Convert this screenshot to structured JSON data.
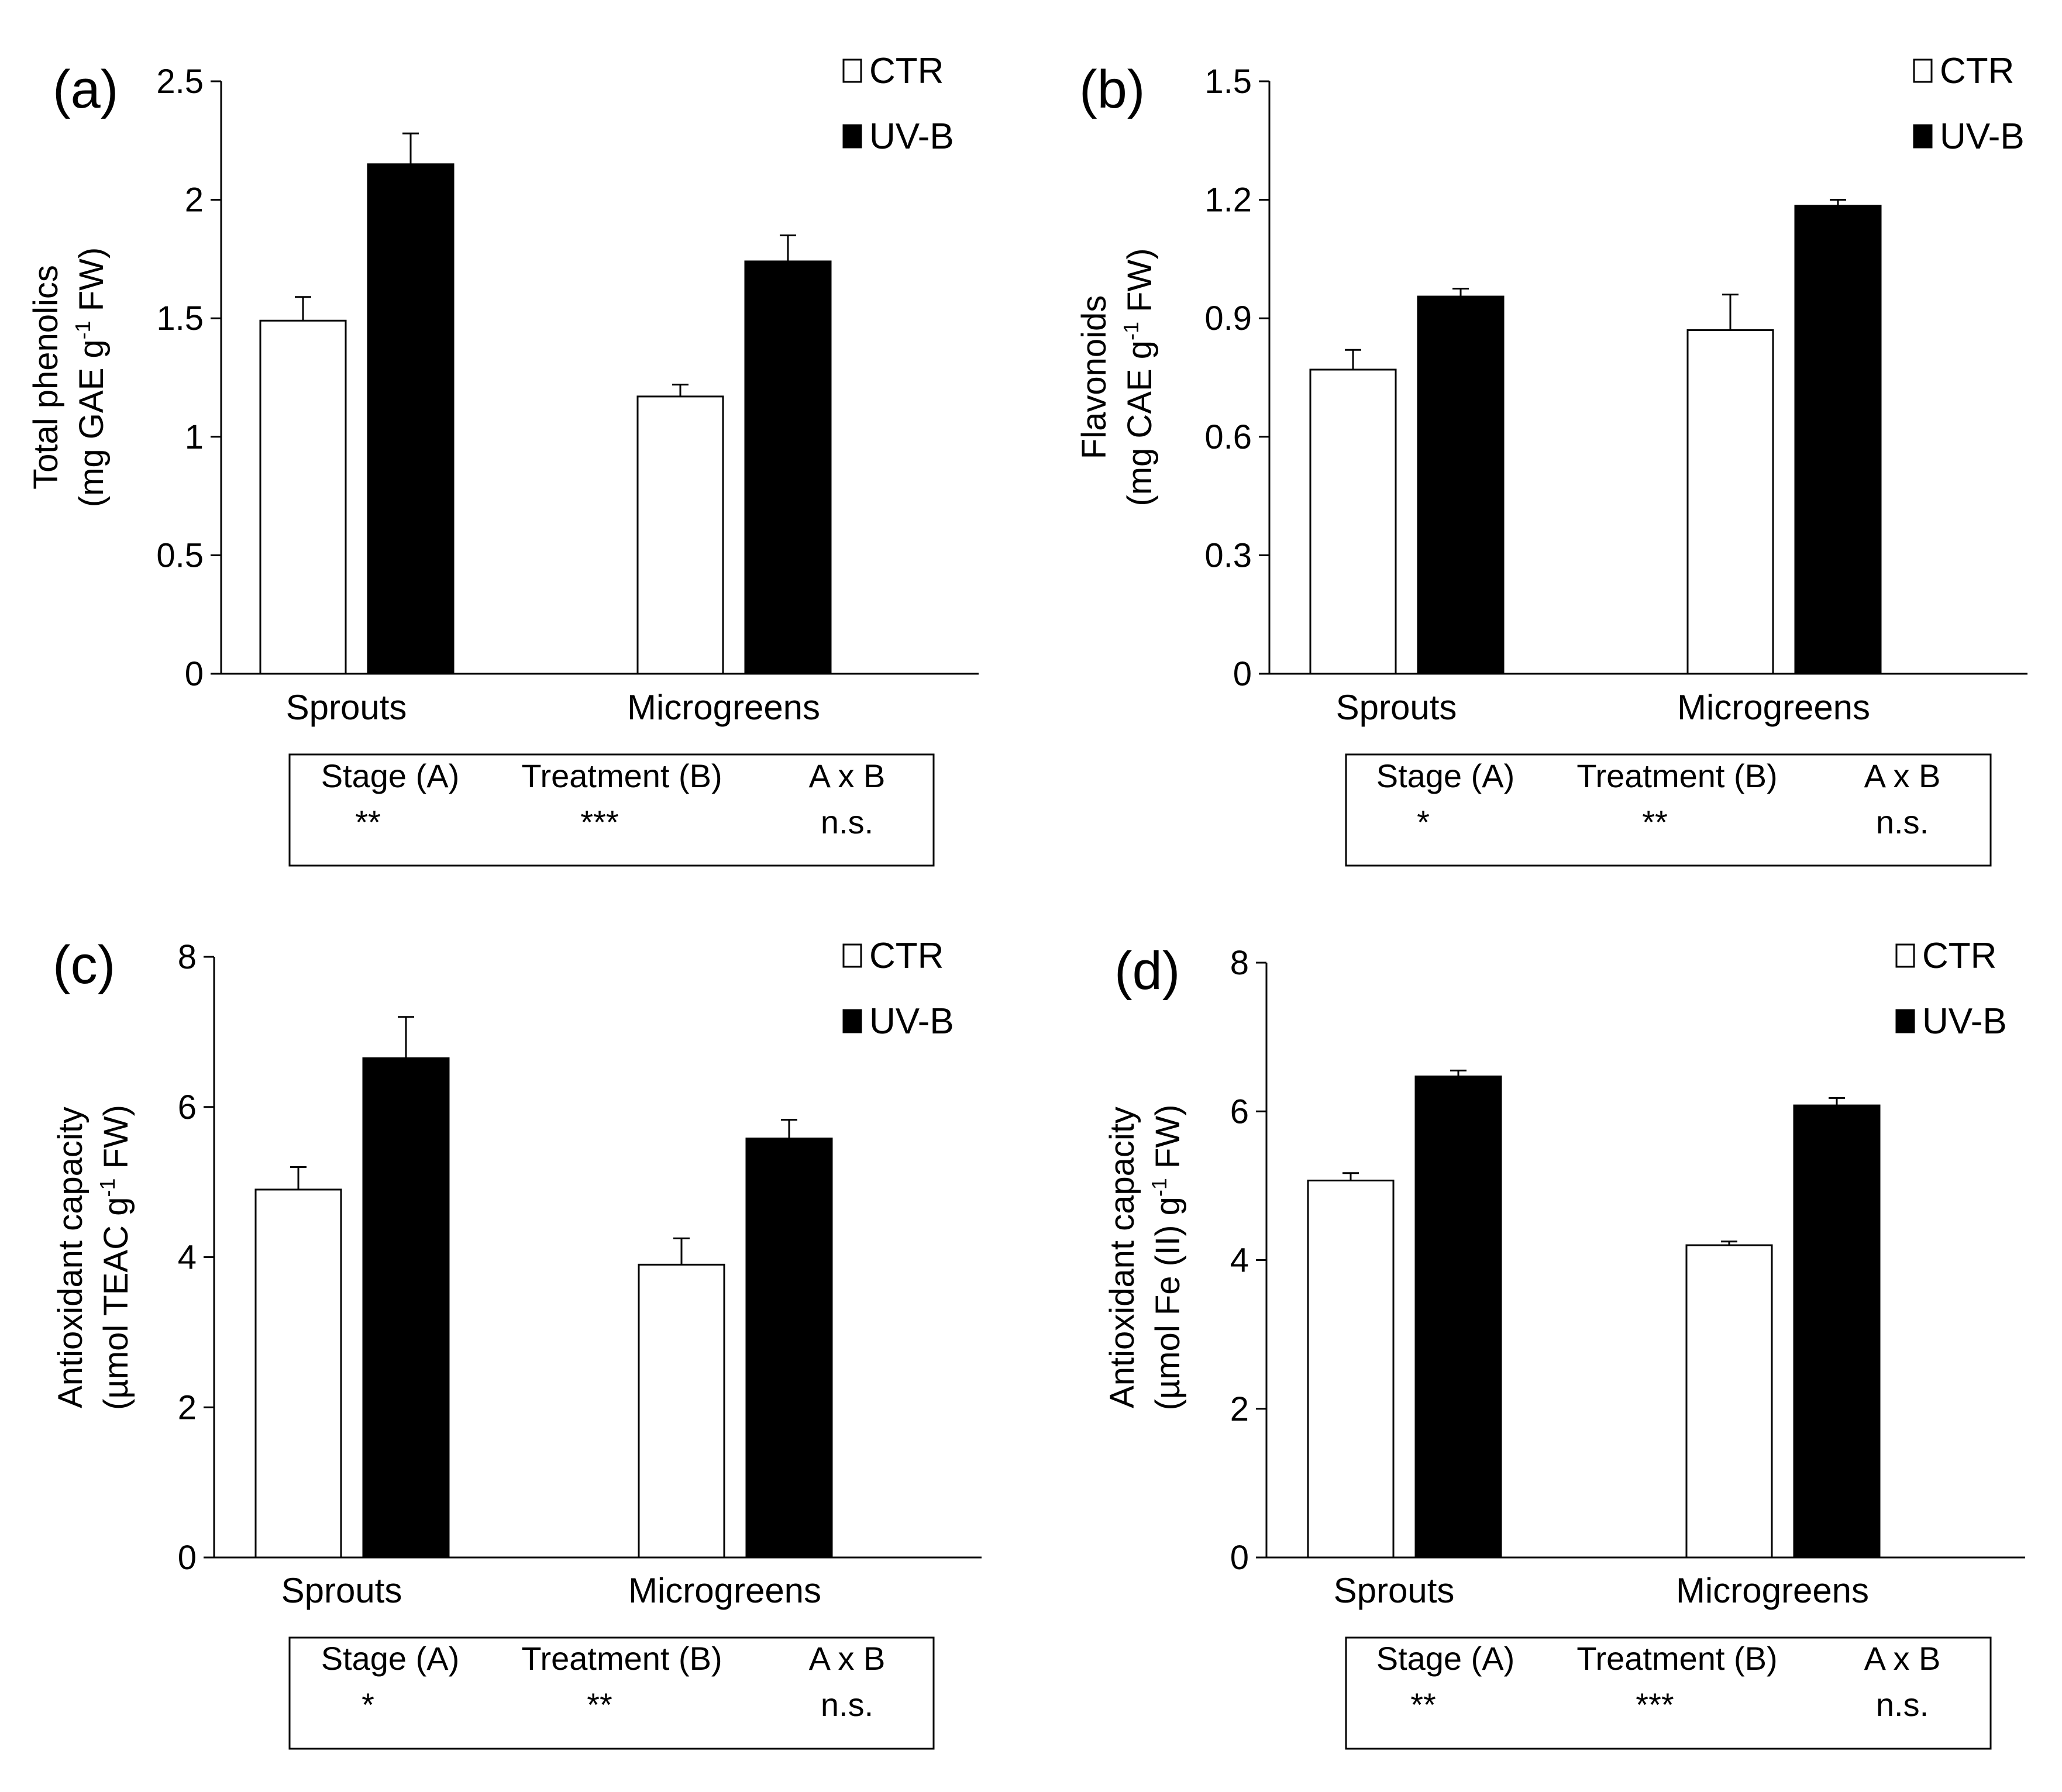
{
  "chart_data": [
    {
      "type": "bar",
      "panel_label": "(a)",
      "title": "",
      "xlabel": "",
      "ylabel_line1": "Total phenolics",
      "ylabel_line2_pre": "(mg GAE g",
      "ylabel_sup": "-1",
      "ylabel_line2_post": " FW)",
      "ylim": [
        0,
        2.5
      ],
      "yticks": [
        0,
        0.5,
        1,
        1.5,
        2,
        2.5
      ],
      "ytick_labels": [
        "0",
        "0.5",
        "1",
        "1.5",
        "2",
        "2.5"
      ],
      "categories": [
        "Sprouts",
        "Microgreens"
      ],
      "series": [
        {
          "name": "CTR",
          "fill": "#ffffff",
          "values": [
            1.49,
            1.17
          ],
          "errors": [
            0.1,
            0.05
          ]
        },
        {
          "name": "UV-B",
          "fill": "#000000",
          "values": [
            2.15,
            1.74
          ],
          "errors": [
            0.13,
            0.11
          ]
        }
      ],
      "legend_position": "top-right",
      "stats": {
        "headers": [
          "Stage (A)",
          "Treatment (B)",
          "A x B"
        ],
        "values": [
          "**",
          "***",
          "n.s."
        ]
      }
    },
    {
      "type": "bar",
      "panel_label": "(b)",
      "title": "",
      "xlabel": "",
      "ylabel_line1": "Flavonoids",
      "ylabel_line2_pre": "(mg CAE g",
      "ylabel_sup": "-1",
      "ylabel_line2_post": " FW)",
      "ylim": [
        0,
        1.5
      ],
      "yticks": [
        0,
        0.3,
        0.6,
        0.9,
        1.2,
        1.5
      ],
      "ytick_labels": [
        "0",
        "0.3",
        "0.6",
        "0.9",
        "1.2",
        "1.5"
      ],
      "categories": [
        "Sprouts",
        "Microgreens"
      ],
      "series": [
        {
          "name": "CTR",
          "fill": "#ffffff",
          "values": [
            0.77,
            0.87
          ],
          "errors": [
            0.05,
            0.09
          ]
        },
        {
          "name": "UV-B",
          "fill": "#000000",
          "values": [
            0.955,
            1.185
          ],
          "errors": [
            0.02,
            0.015
          ]
        }
      ],
      "legend_position": "top-right",
      "stats": {
        "headers": [
          "Stage (A)",
          "Treatment (B)",
          "A x B"
        ],
        "values": [
          "*",
          "**",
          "n.s."
        ]
      }
    },
    {
      "type": "bar",
      "panel_label": "(c)",
      "title": "",
      "xlabel": "",
      "ylabel_line1": "Antioxidant capacity",
      "ylabel_line2_pre": "(µmol TEAC g",
      "ylabel_sup": "-1",
      "ylabel_line2_post": " FW)",
      "ylim": [
        0,
        8
      ],
      "yticks": [
        0,
        2,
        4,
        6,
        8
      ],
      "ytick_labels": [
        "0",
        "2",
        "4",
        "6",
        "8"
      ],
      "categories": [
        "Sprouts",
        "Microgreens"
      ],
      "series": [
        {
          "name": "CTR",
          "fill": "#ffffff",
          "values": [
            4.9,
            3.9
          ],
          "errors": [
            0.3,
            0.35
          ]
        },
        {
          "name": "UV-B",
          "fill": "#000000",
          "values": [
            6.65,
            5.58
          ],
          "errors": [
            0.55,
            0.25
          ]
        }
      ],
      "legend_position": "top-right",
      "stats": {
        "headers": [
          "Stage (A)",
          "Treatment (B)",
          "A x B"
        ],
        "values": [
          "*",
          "**",
          "n.s."
        ]
      }
    },
    {
      "type": "bar",
      "panel_label": "(d)",
      "title": "",
      "xlabel": "",
      "ylabel_line1": "Antioxidant capacity",
      "ylabel_line2_pre": "(µmol Fe (II) g",
      "ylabel_sup": "-1",
      "ylabel_line2_post": " FW)",
      "ylim": [
        0,
        8
      ],
      "yticks": [
        0,
        2,
        4,
        6,
        8
      ],
      "ytick_labels": [
        "0",
        "2",
        "4",
        "6",
        "8"
      ],
      "categories": [
        "Sprouts",
        "Microgreens"
      ],
      "series": [
        {
          "name": "CTR",
          "fill": "#ffffff",
          "values": [
            5.07,
            4.2
          ],
          "errors": [
            0.1,
            0.05
          ]
        },
        {
          "name": "UV-B",
          "fill": "#000000",
          "values": [
            6.47,
            6.08
          ],
          "errors": [
            0.08,
            0.1
          ]
        }
      ],
      "legend_position": "top-right",
      "stats": {
        "headers": [
          "Stage (A)",
          "Treatment (B)",
          "A x B"
        ],
        "values": [
          "**",
          "***",
          "n.s."
        ]
      }
    }
  ]
}
